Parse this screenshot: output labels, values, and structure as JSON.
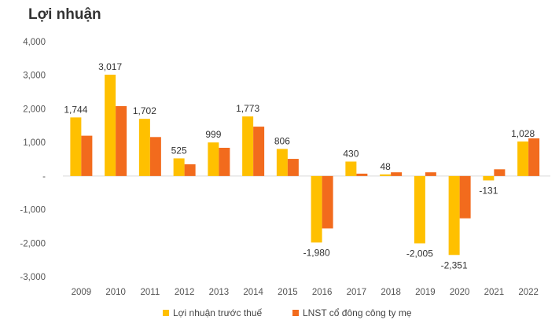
{
  "chart_data": {
    "type": "bar",
    "title": "Lợi nhuận",
    "xlabel": "",
    "ylabel": "",
    "ylim": [
      -3000,
      4000
    ],
    "yticks": [
      4000,
      3000,
      2000,
      1000,
      0,
      -1000,
      -2000,
      -3000
    ],
    "ytick_labels": [
      "4,000",
      "3,000",
      "2,000",
      "1,000",
      "-",
      "-1,000",
      "-2,000",
      "-3,000"
    ],
    "grid": false,
    "legend_position": "bottom",
    "categories": [
      "2009",
      "2010",
      "2011",
      "2012",
      "2013",
      "2014",
      "2015",
      "2016",
      "2017",
      "2018",
      "2019",
      "2020",
      "2021",
      "2022"
    ],
    "series": [
      {
        "name": "Lợi nhuận trước thuế",
        "color": "#FFC000",
        "values": [
          1744,
          3017,
          1702,
          525,
          999,
          1773,
          806,
          -1980,
          430,
          48,
          -2005,
          -2351,
          -131,
          1028
        ],
        "labels": [
          "1,744",
          "3,017",
          "1,702",
          "525",
          "999",
          "1,773",
          "806",
          "-1,980",
          "430",
          "48",
          "-2,005",
          "-2,351",
          "-131",
          "1,028"
        ]
      },
      {
        "name": "LNST cổ đông công ty mẹ",
        "color": "#F26B1D",
        "values": [
          1200,
          2080,
          1160,
          350,
          840,
          1470,
          510,
          -1560,
          70,
          110,
          110,
          -1260,
          200,
          1120
        ]
      }
    ]
  }
}
